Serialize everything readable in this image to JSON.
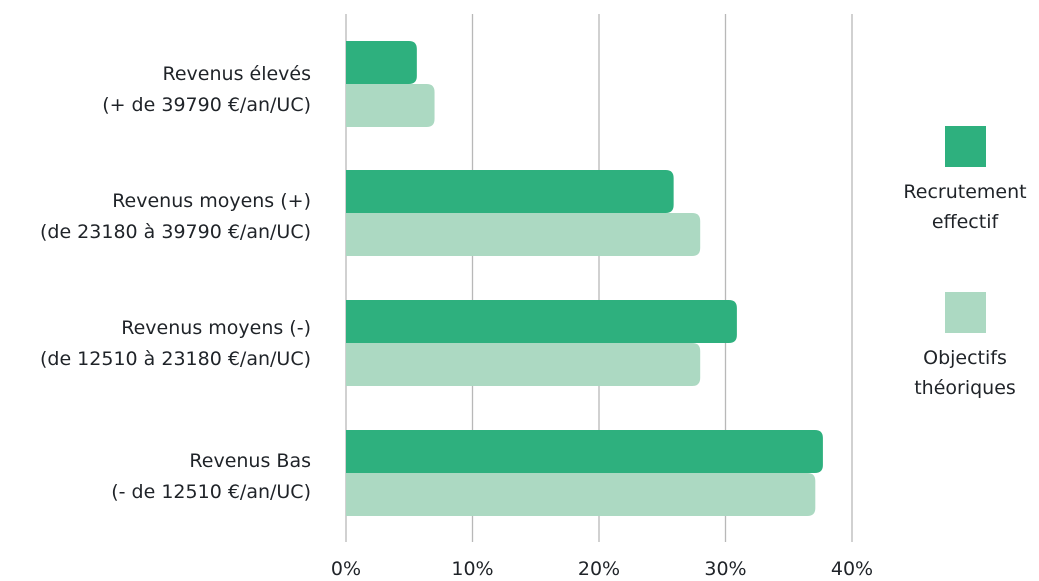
{
  "chart_data": {
    "type": "bar",
    "orientation": "horizontal",
    "categories": [
      {
        "line1": "Revenus élevés",
        "line2": "(+ de 39790 €/an/UC)"
      },
      {
        "line1": "Revenus moyens (+)",
        "line2": "(de 23180 à 39790 €/an/UC)"
      },
      {
        "line1": "Revenus moyens (-)",
        "line2": "(de 12510 à 23180 €/an/UC)"
      },
      {
        "line1": "Revenus Bas",
        "line2": "(- de 12510 €/an/UC)"
      }
    ],
    "series": [
      {
        "name": "Recrutement effectif",
        "color": "#2eb07e",
        "values": [
          5.6,
          25.9,
          30.9,
          37.7
        ]
      },
      {
        "name": "Objectifs théoriques",
        "color": "#acd9c2",
        "values": [
          7.0,
          28.0,
          28.0,
          37.1
        ]
      }
    ],
    "xlim": [
      0,
      40
    ],
    "xticks": [
      "0%",
      "10%",
      "20%",
      "30%",
      "40%"
    ],
    "grid": "vertical",
    "legend_position": "right"
  },
  "legend": {
    "items": [
      {
        "line1": "Recrutement",
        "line2": "effectif",
        "color": "#2eb07e"
      },
      {
        "line1": "Objectifs",
        "line2": "théoriques",
        "color": "#acd9c2"
      }
    ]
  }
}
